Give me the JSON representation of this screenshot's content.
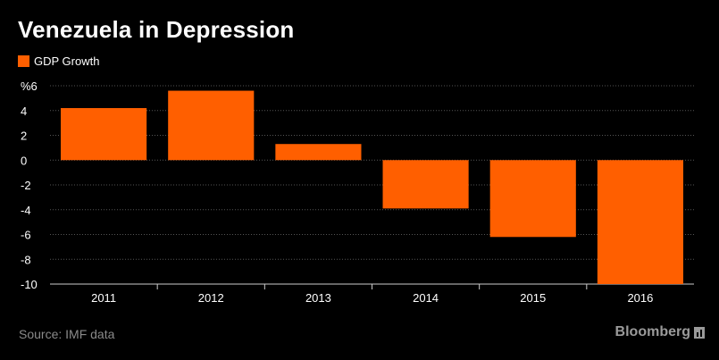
{
  "header": {
    "title": "Venezuela in Depression"
  },
  "legend": {
    "label": "GDP Growth",
    "color": "#ff5f00"
  },
  "footer": {
    "source": "Source: IMF data",
    "brand": "Bloomberg",
    "brand_icon": "chart-bars-icon"
  },
  "chart_data": {
    "type": "bar",
    "title": "Venezuela in Depression",
    "categories": [
      "2011",
      "2012",
      "2013",
      "2014",
      "2015",
      "2016"
    ],
    "series": [
      {
        "name": "GDP Growth",
        "values": [
          4.2,
          5.6,
          1.3,
          -3.9,
          -6.2,
          -10.0
        ]
      }
    ],
    "ylim": [
      -10,
      6
    ],
    "yticks": [
      6,
      4,
      2,
      0,
      -2,
      -4,
      -6,
      -8,
      -10
    ],
    "ytick_labels": [
      "%6",
      "4",
      "2",
      "0",
      "-2",
      "-4",
      "-6",
      "-8",
      "-10"
    ],
    "xlabel": "",
    "ylabel": "%",
    "grid": true,
    "legend_position": "top-left",
    "bar_color": "#ff5f00"
  }
}
